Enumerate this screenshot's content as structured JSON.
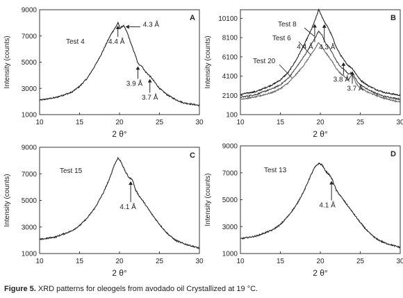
{
  "caption": {
    "label": "Figure 5.",
    "text": " XRD patterns for oleogels from avodado oil Crystallized at 19 °C."
  },
  "chart_data": [
    {
      "type": "line",
      "panel": "A",
      "xlabel": "2 θ°",
      "ylabel": "Intensity (counts)",
      "xlim": [
        10,
        30
      ],
      "ylim": [
        1000,
        9000
      ],
      "xticks": [
        10,
        15,
        20,
        25,
        30
      ],
      "yticks": [
        1000,
        3000,
        5000,
        7000,
        9000
      ],
      "series": [
        {
          "name": "Test 4",
          "color": "#222222",
          "x": [
            10,
            12,
            14,
            15,
            16,
            17,
            17.8,
            18.5,
            19,
            19.5,
            19.8,
            20.1,
            20.5,
            21,
            21.5,
            22,
            22.3,
            22.8,
            23.2,
            23.7,
            24,
            24.5,
            25,
            26,
            27,
            28,
            30
          ],
          "y": [
            2100,
            2300,
            2700,
            3150,
            3800,
            4800,
            5700,
            6600,
            7200,
            7650,
            8000,
            7600,
            7800,
            7200,
            6300,
            5500,
            4900,
            4700,
            4300,
            4000,
            3800,
            3400,
            3000,
            2500,
            2150,
            1900,
            1700
          ]
        }
      ],
      "annotations": [
        {
          "text": "4.4 Å",
          "x": 19.8
        },
        {
          "text": "4.3 Å",
          "x": 20.5
        },
        {
          "text": "3.9 Å",
          "x": 22.3
        },
        {
          "text": "3.7 Å",
          "x": 23.8
        }
      ]
    },
    {
      "type": "line",
      "panel": "B",
      "xlabel": "2 θ°",
      "ylabel": "Intensity (counts)",
      "xlim": [
        10,
        30
      ],
      "ylim": [
        100,
        11000
      ],
      "xticks": [
        10,
        15,
        20,
        25,
        30
      ],
      "yticks": [
        100,
        2100,
        4100,
        6100,
        8100,
        10100
      ],
      "series": [
        {
          "name": "Test 8",
          "color": "#222222",
          "x": [
            10,
            12,
            14,
            15,
            16,
            17,
            18,
            18.8,
            19.3,
            19.8,
            20.2,
            20.6,
            21,
            21.5,
            22,
            22.6,
            23,
            23.5,
            24,
            24.5,
            25,
            26,
            27,
            28,
            30
          ],
          "y": [
            2200,
            2500,
            3200,
            3700,
            4500,
            5800,
            7400,
            8800,
            9800,
            11000,
            10300,
            9600,
            9100,
            8200,
            7100,
            6200,
            5700,
            5200,
            4900,
            4300,
            3700,
            3100,
            2700,
            2400,
            2100
          ]
        },
        {
          "name": "Test 6",
          "color": "#444444",
          "x": [
            10,
            12,
            14,
            15,
            16,
            17,
            18,
            18.8,
            19.3,
            19.8,
            20.2,
            20.6,
            21,
            21.5,
            22,
            22.6,
            23,
            23.5,
            24,
            24.5,
            25,
            26,
            27,
            28,
            30
          ],
          "y": [
            1900,
            2200,
            2800,
            3200,
            3900,
            5000,
            6200,
            7300,
            8000,
            8800,
            8400,
            7600,
            7200,
            6500,
            5700,
            5000,
            4800,
            4300,
            4500,
            3700,
            3200,
            2700,
            2300,
            2000,
            1700
          ]
        },
        {
          "name": "Test 20",
          "color": "#666666",
          "x": [
            10,
            12,
            14,
            15,
            16,
            17,
            18,
            18.8,
            19.3,
            19.8,
            20.2,
            20.6,
            21,
            21.5,
            22,
            22.6,
            23,
            23.5,
            24,
            24.5,
            25,
            26,
            27,
            28,
            30
          ],
          "y": [
            1700,
            1950,
            2400,
            2800,
            3400,
            4300,
            5300,
            6300,
            6900,
            7600,
            7200,
            6600,
            6200,
            5600,
            4900,
            4300,
            4100,
            3700,
            4300,
            3300,
            2900,
            2400,
            2100,
            1800,
            1400
          ]
        }
      ],
      "annotations": [
        {
          "text": "4.4 Å",
          "x": 19.3
        },
        {
          "text": "4.3 Å",
          "x": 20.5
        },
        {
          "text": "3.8 Å",
          "x": 22.9
        },
        {
          "text": "3.7 Å",
          "x": 24
        }
      ]
    },
    {
      "type": "line",
      "panel": "C",
      "xlabel": "2 θ°",
      "ylabel": "Intensity (counts)",
      "xlim": [
        10,
        30
      ],
      "ylim": [
        1000,
        9000
      ],
      "xticks": [
        10,
        15,
        20,
        25,
        30
      ],
      "yticks": [
        1000,
        3000,
        5000,
        7000,
        9000
      ],
      "series": [
        {
          "name": "Test 15",
          "color": "#222222",
          "x": [
            10,
            12,
            14,
            15,
            16,
            17,
            18,
            18.8,
            19.3,
            19.8,
            20.2,
            20.7,
            21.2,
            21.6,
            22,
            22.5,
            23,
            24,
            25,
            26,
            27,
            28,
            30
          ],
          "y": [
            2050,
            2250,
            2700,
            3100,
            3700,
            4500,
            5600,
            6700,
            7600,
            8200,
            7900,
            7200,
            6700,
            6600,
            5800,
            5300,
            4900,
            4000,
            3200,
            2500,
            2000,
            1750,
            1400
          ]
        }
      ],
      "annotations": [
        {
          "text": "4.1 Å",
          "x": 21.4
        }
      ]
    },
    {
      "type": "line",
      "panel": "D",
      "xlabel": "2 θ°",
      "ylabel": "Intensity (counts)",
      "xlim": [
        10,
        30
      ],
      "ylim": [
        1000,
        9000
      ],
      "xticks": [
        10,
        15,
        20,
        25,
        30
      ],
      "yticks": [
        1000,
        3000,
        5000,
        7000,
        9000
      ],
      "series": [
        {
          "name": "Test 13",
          "color": "#222222",
          "x": [
            10,
            12,
            14,
            15,
            16,
            17,
            18,
            18.8,
            19.3,
            19.8,
            20.2,
            20.7,
            21.2,
            21.5,
            22,
            22.5,
            23,
            24,
            25,
            26,
            27,
            28,
            30
          ],
          "y": [
            2100,
            2300,
            2750,
            3150,
            3800,
            4600,
            5700,
            6800,
            7400,
            7700,
            7600,
            7100,
            6800,
            6500,
            5700,
            5300,
            4900,
            4100,
            3300,
            2600,
            2100,
            1800,
            1450
          ]
        }
      ],
      "annotations": [
        {
          "text": "4.1 Å",
          "x": 21.4
        }
      ]
    }
  ]
}
